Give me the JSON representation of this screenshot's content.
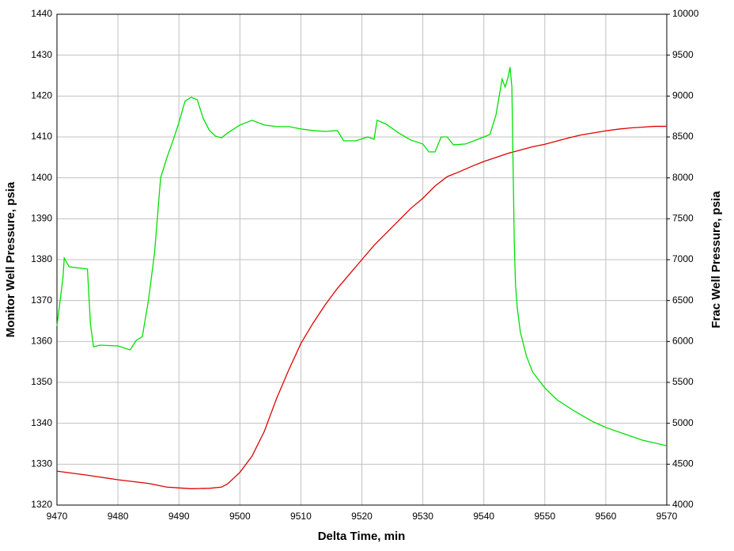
{
  "chart_data": {
    "type": "line",
    "xlabel": "Delta Time, min",
    "ylabel": "Monitor Well Pressure, psia",
    "y2label": "Frac Well Pressure, psia",
    "ylabel_color": "#e00000",
    "y2label_color": "#00d000",
    "xlim": [
      9470,
      9570
    ],
    "xticks": [
      9470,
      9480,
      9490,
      9500,
      9510,
      9520,
      9530,
      9540,
      9550,
      9560,
      9570
    ],
    "ylim": [
      1320,
      1440
    ],
    "yticks": [
      1320,
      1330,
      1340,
      1350,
      1360,
      1370,
      1380,
      1390,
      1400,
      1410,
      1420,
      1430,
      1440
    ],
    "y2lim": [
      4000,
      10000
    ],
    "y2ticks": [
      4000,
      4500,
      5000,
      5500,
      6000,
      6500,
      7000,
      7500,
      8000,
      8500,
      9000,
      9500,
      10000
    ],
    "grid": true,
    "series": [
      {
        "color": "#e00000",
        "axis": "y",
        "x": [
          9470,
          9475,
          9480,
          9485,
          9488,
          9490,
          9492,
          9495,
          9497,
          9498,
          9500,
          9502,
          9504,
          9506,
          9508,
          9510,
          9512,
          9514,
          9516,
          9518,
          9520,
          9522,
          9524,
          9526,
          9528,
          9530,
          9532,
          9534,
          9536,
          9538,
          9540,
          9542,
          9544,
          9546,
          9548,
          9550,
          9552,
          9554,
          9556,
          9558,
          9560,
          9562,
          9564,
          9566,
          9568,
          9570
        ],
        "values": [
          1328.3,
          1327.3,
          1326.2,
          1325.3,
          1324.4,
          1324.2,
          1324.0,
          1324.1,
          1324.4,
          1325.2,
          1328,
          1332,
          1338,
          1346,
          1353,
          1359.5,
          1364.5,
          1369,
          1373,
          1376.5,
          1380,
          1383.5,
          1386.5,
          1389.5,
          1392.5,
          1395,
          1398,
          1400.3,
          1401.5,
          1402.8,
          1404,
          1405,
          1406,
          1406.8,
          1407.6,
          1408.2,
          1409,
          1409.8,
          1410.5,
          1411,
          1411.5,
          1411.9,
          1412.2,
          1412.4,
          1412.6,
          1412.6
        ]
      },
      {
        "color": "#00e000",
        "axis": "y2",
        "x": [
          9470,
          9471,
          9471.2,
          9472,
          9475,
          9475.5,
          9476,
          9477,
          9480,
          9482,
          9483,
          9484,
          9485,
          9486,
          9487,
          9488,
          9489,
          9490,
          9491,
          9492,
          9493,
          9494,
          9495,
          9496,
          9497,
          9498,
          9500,
          9502,
          9504,
          9506,
          9508,
          9510,
          9512,
          9514,
          9516,
          9517,
          9519,
          9521,
          9522,
          9522.5,
          9524,
          9526,
          9528,
          9530,
          9531,
          9532,
          9533,
          9534,
          9535,
          9537,
          9539,
          9541,
          9542,
          9543,
          9543.5,
          9544,
          9544.3,
          9544.6,
          9545,
          9545.2,
          9545.5,
          9546,
          9547,
          9548,
          9550,
          9552,
          9555,
          9558,
          9560,
          9563,
          9566,
          9570
        ],
        "values": [
          6187,
          6790,
          7020,
          6913,
          6885,
          6207,
          5935,
          5955,
          5945,
          5897,
          6013,
          6060,
          6500,
          7080,
          8000,
          8240,
          8450,
          8675,
          8937,
          8985,
          8956,
          8724,
          8580,
          8510,
          8490,
          8550,
          8646,
          8704,
          8646,
          8627,
          8627,
          8598,
          8578,
          8568,
          8578,
          8453,
          8453,
          8500,
          8471,
          8704,
          8656,
          8550,
          8463,
          8414,
          8317,
          8317,
          8500,
          8500,
          8404,
          8414,
          8471,
          8530,
          8772,
          9208,
          9110,
          9237,
          9353,
          9110,
          7175,
          6690,
          6400,
          6110,
          5820,
          5626,
          5433,
          5287,
          5142,
          5016,
          4949,
          4871,
          4794,
          4726
        ]
      }
    ]
  }
}
